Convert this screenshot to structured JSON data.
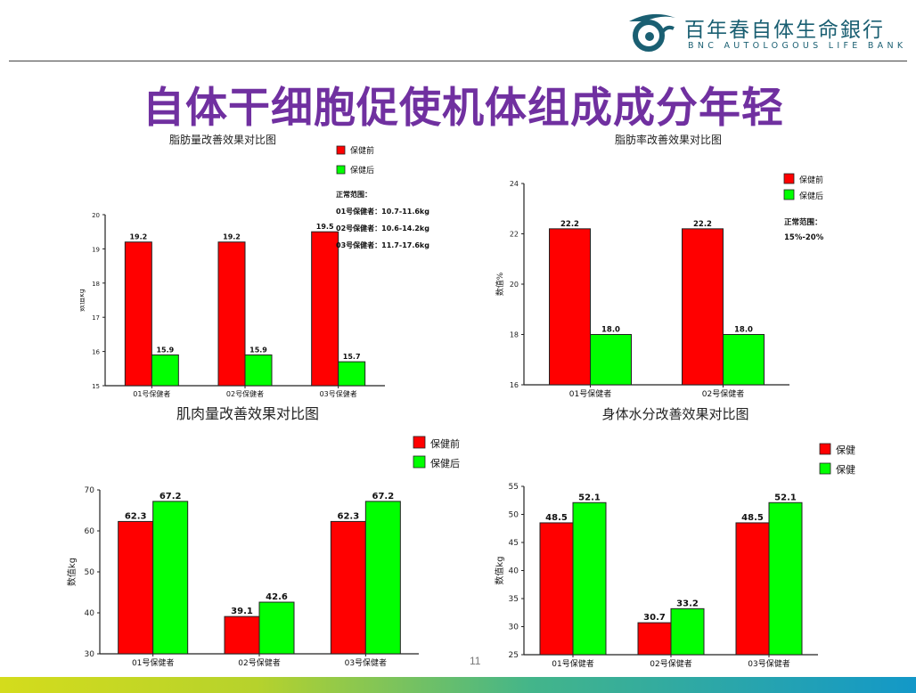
{
  "logo": {
    "name_cn": "百年春自体生命銀行",
    "name_en": "BNC AUTOLOGOUS LIFE BANK",
    "icon": "swirl-logo-icon",
    "color": "#1a5f72"
  },
  "title": "自体干细胞促使机体组成成分年轻",
  "page_number": "11",
  "colors": {
    "before": "#ff0000",
    "after": "#00ff00",
    "title": "#7030a0"
  },
  "chart_data": [
    {
      "type": "bar",
      "title": "脂肪量改善效果对比图",
      "ylabel": "数值kg",
      "categories": [
        "01号保健者",
        "02号保健者",
        "03号保健者"
      ],
      "series": [
        {
          "name": "保健前",
          "values": [
            19.2,
            19.2,
            19.5
          ]
        },
        {
          "name": "保健后",
          "values": [
            15.9,
            15.9,
            15.7
          ]
        }
      ],
      "ylim": [
        15,
        20
      ],
      "yticks": [
        15,
        16,
        17,
        18,
        19,
        20
      ],
      "labels": [
        "19.2",
        "19.2",
        "19.5",
        "15.9",
        "15.9",
        "15.7"
      ],
      "notes": [
        "正常范围：",
        "01号保健者：10.7-11.6kg",
        "02号保健者：10.6-14.2kg",
        "03号保健者：11.7-17.6kg"
      ],
      "legend": "top-right"
    },
    {
      "type": "bar",
      "title": "脂肪率改善效果对比图",
      "ylabel": "数值%",
      "categories": [
        "01号保健者",
        "02号保健者"
      ],
      "series": [
        {
          "name": "保健前",
          "values": [
            22.2,
            22.2
          ]
        },
        {
          "name": "保健后",
          "values": [
            18.0,
            18.0
          ]
        }
      ],
      "ylim": [
        16,
        24
      ],
      "yticks": [
        16,
        18,
        20,
        22,
        24
      ],
      "labels": [
        "22.2",
        "22.2",
        "18.0",
        "18.0"
      ],
      "notes": [
        "正常范围：",
        "15%-20%"
      ],
      "legend": "top-right"
    },
    {
      "type": "bar",
      "title": "肌肉量改善效果对比图",
      "ylabel": "数值kg",
      "categories": [
        "01号保健者",
        "02号保健者",
        "03号保健者"
      ],
      "series": [
        {
          "name": "保健前",
          "values": [
            62.3,
            39.1,
            62.3
          ]
        },
        {
          "name": "保健后",
          "values": [
            67.2,
            42.6,
            67.2
          ]
        }
      ],
      "ylim": [
        30,
        70
      ],
      "yticks": [
        30,
        40,
        50,
        60,
        70
      ],
      "labels": [
        "62.3",
        "39.1",
        "62.3",
        "67.2",
        "42.6",
        "67.2"
      ],
      "notes": [],
      "legend": "top-right"
    },
    {
      "type": "bar",
      "title": "身体水分改善效果对比图",
      "ylabel": "数值kg",
      "categories": [
        "01号保健者",
        "02号保健者",
        "03号保健者"
      ],
      "series": [
        {
          "name": "保健",
          "values": [
            48.5,
            30.7,
            48.5
          ]
        },
        {
          "name": "保健",
          "values": [
            52.1,
            33.2,
            52.1
          ]
        }
      ],
      "ylim": [
        25,
        55
      ],
      "yticks": [
        25,
        30,
        35,
        40,
        45,
        50,
        55
      ],
      "labels": [
        "48.5",
        "30.7",
        "48.5",
        "52.1",
        "33.2",
        "52.1"
      ],
      "notes": [],
      "legend": "top-right"
    }
  ]
}
